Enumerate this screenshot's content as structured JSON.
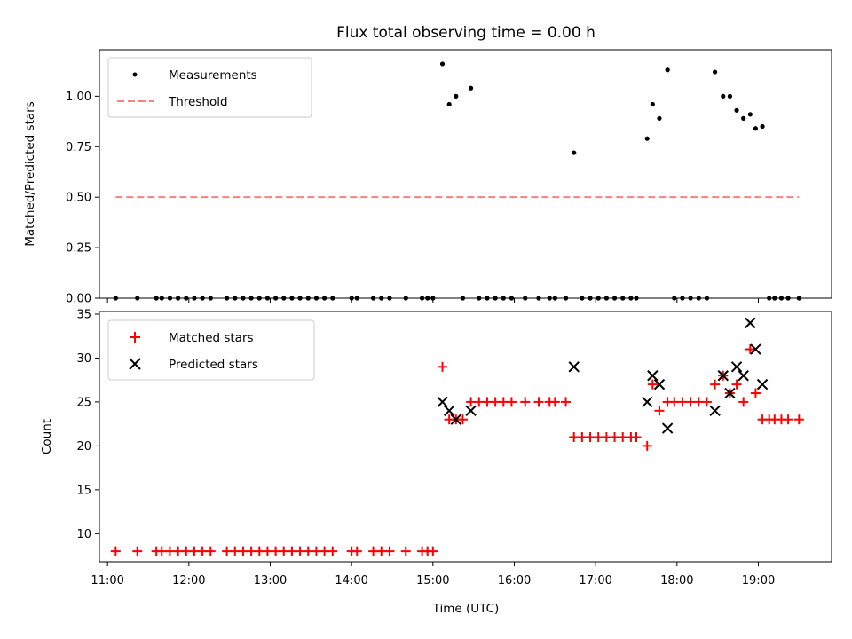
{
  "chart_data": [
    {
      "type": "scatter",
      "title": "Flux total observing time = 0.00 h",
      "xlabel": "",
      "ylabel": "Matched/Predicted stars",
      "xlim": [
        "10:54",
        "19:54"
      ],
      "ylim": [
        0,
        1.23
      ],
      "yticks": [
        "0.00",
        "0.25",
        "0.50",
        "0.75",
        "1.00"
      ],
      "grid": false,
      "legend_position": "top-left",
      "series": [
        {
          "name": "Measurements",
          "marker": "dot",
          "color": "#000000",
          "points": [
            [
              "11:06",
              0
            ],
            [
              "11:22",
              0
            ],
            [
              "11:36",
              0
            ],
            [
              "11:40",
              0
            ],
            [
              "11:46",
              0
            ],
            [
              "11:52",
              0
            ],
            [
              "11:58",
              0
            ],
            [
              "12:04",
              0
            ],
            [
              "12:10",
              0
            ],
            [
              "12:16",
              0
            ],
            [
              "12:28",
              0
            ],
            [
              "12:34",
              0
            ],
            [
              "12:40",
              0
            ],
            [
              "12:46",
              0
            ],
            [
              "12:52",
              0
            ],
            [
              "12:58",
              0
            ],
            [
              "13:04",
              0
            ],
            [
              "13:10",
              0
            ],
            [
              "13:16",
              0
            ],
            [
              "13:22",
              0
            ],
            [
              "13:28",
              0
            ],
            [
              "13:34",
              0
            ],
            [
              "13:40",
              0
            ],
            [
              "13:46",
              0
            ],
            [
              "14:00",
              0
            ],
            [
              "14:04",
              0
            ],
            [
              "14:16",
              0
            ],
            [
              "14:22",
              0
            ],
            [
              "14:28",
              0
            ],
            [
              "14:40",
              0
            ],
            [
              "14:52",
              0
            ],
            [
              "14:56",
              0
            ],
            [
              "15:00",
              0
            ],
            [
              "15:07",
              1.16
            ],
            [
              "15:12",
              0.96
            ],
            [
              "15:17",
              1.0
            ],
            [
              "15:22",
              0
            ],
            [
              "15:28",
              1.04
            ],
            [
              "15:34",
              0
            ],
            [
              "15:40",
              0
            ],
            [
              "15:46",
              0
            ],
            [
              "15:52",
              0
            ],
            [
              "15:58",
              0
            ],
            [
              "16:08",
              0
            ],
            [
              "16:18",
              0
            ],
            [
              "16:26",
              0
            ],
            [
              "16:30",
              0
            ],
            [
              "16:38",
              0
            ],
            [
              "16:44",
              0.72
            ],
            [
              "16:50",
              0
            ],
            [
              "16:56",
              0
            ],
            [
              "17:02",
              0
            ],
            [
              "17:08",
              0
            ],
            [
              "17:14",
              0
            ],
            [
              "17:20",
              0
            ],
            [
              "17:26",
              0
            ],
            [
              "17:30",
              0
            ],
            [
              "17:38",
              0.79
            ],
            [
              "17:42",
              0.96
            ],
            [
              "17:47",
              0.89
            ],
            [
              "17:53",
              1.13
            ],
            [
              "17:58",
              0
            ],
            [
              "18:04",
              0
            ],
            [
              "18:10",
              0
            ],
            [
              "18:16",
              0
            ],
            [
              "18:22",
              0
            ],
            [
              "18:28",
              1.12
            ],
            [
              "18:34",
              1.0
            ],
            [
              "18:39",
              1.0
            ],
            [
              "18:44",
              0.93
            ],
            [
              "18:49",
              0.89
            ],
            [
              "18:54",
              0.91
            ],
            [
              "18:58",
              0.84
            ],
            [
              "19:03",
              0.85
            ],
            [
              "19:08",
              0
            ],
            [
              "19:12",
              0
            ],
            [
              "19:17",
              0
            ],
            [
              "19:22",
              0
            ],
            [
              "19:30",
              0
            ]
          ]
        },
        {
          "name": "Threshold",
          "marker": "dashed-line",
          "color": "#ff7f7f",
          "points": [
            [
              "11:06",
              0.5
            ],
            [
              "19:30",
              0.5
            ]
          ]
        }
      ]
    },
    {
      "type": "scatter",
      "title": "",
      "xlabel": "Time (UTC)",
      "ylabel": "Count",
      "xlim": [
        "10:54",
        "19:54"
      ],
      "ylim": [
        6.8,
        35.3
      ],
      "xticks": [
        "11:00",
        "12:00",
        "13:00",
        "14:00",
        "15:00",
        "16:00",
        "17:00",
        "18:00",
        "19:00"
      ],
      "yticks": [
        "10",
        "15",
        "20",
        "25",
        "30",
        "35"
      ],
      "grid": false,
      "legend_position": "top-left",
      "series": [
        {
          "name": "Matched stars",
          "marker": "plus",
          "color": "#ff0000",
          "points": [
            [
              "11:06",
              8
            ],
            [
              "11:22",
              8
            ],
            [
              "11:36",
              8
            ],
            [
              "11:40",
              8
            ],
            [
              "11:46",
              8
            ],
            [
              "11:52",
              8
            ],
            [
              "11:58",
              8
            ],
            [
              "12:04",
              8
            ],
            [
              "12:10",
              8
            ],
            [
              "12:16",
              8
            ],
            [
              "12:28",
              8
            ],
            [
              "12:34",
              8
            ],
            [
              "12:40",
              8
            ],
            [
              "12:46",
              8
            ],
            [
              "12:52",
              8
            ],
            [
              "12:58",
              8
            ],
            [
              "13:04",
              8
            ],
            [
              "13:10",
              8
            ],
            [
              "13:16",
              8
            ],
            [
              "13:22",
              8
            ],
            [
              "13:28",
              8
            ],
            [
              "13:34",
              8
            ],
            [
              "13:40",
              8
            ],
            [
              "13:46",
              8
            ],
            [
              "14:00",
              8
            ],
            [
              "14:04",
              8
            ],
            [
              "14:16",
              8
            ],
            [
              "14:22",
              8
            ],
            [
              "14:28",
              8
            ],
            [
              "14:40",
              8
            ],
            [
              "14:52",
              8
            ],
            [
              "14:56",
              8
            ],
            [
              "15:00",
              8
            ],
            [
              "15:07",
              29
            ],
            [
              "15:12",
              23
            ],
            [
              "15:17",
              23
            ],
            [
              "15:22",
              23
            ],
            [
              "15:28",
              25
            ],
            [
              "15:34",
              25
            ],
            [
              "15:40",
              25
            ],
            [
              "15:46",
              25
            ],
            [
              "15:52",
              25
            ],
            [
              "15:58",
              25
            ],
            [
              "16:08",
              25
            ],
            [
              "16:18",
              25
            ],
            [
              "16:26",
              25
            ],
            [
              "16:30",
              25
            ],
            [
              "16:38",
              25
            ],
            [
              "16:44",
              21
            ],
            [
              "16:50",
              21
            ],
            [
              "16:56",
              21
            ],
            [
              "17:02",
              21
            ],
            [
              "17:08",
              21
            ],
            [
              "17:14",
              21
            ],
            [
              "17:20",
              21
            ],
            [
              "17:26",
              21
            ],
            [
              "17:30",
              21
            ],
            [
              "17:38",
              20
            ],
            [
              "17:42",
              27
            ],
            [
              "17:47",
              24
            ],
            [
              "17:53",
              25
            ],
            [
              "17:58",
              25
            ],
            [
              "18:04",
              25
            ],
            [
              "18:10",
              25
            ],
            [
              "18:16",
              25
            ],
            [
              "18:22",
              25
            ],
            [
              "18:28",
              27
            ],
            [
              "18:34",
              28
            ],
            [
              "18:39",
              26
            ],
            [
              "18:44",
              27
            ],
            [
              "18:49",
              25
            ],
            [
              "18:54",
              31
            ],
            [
              "18:58",
              26
            ],
            [
              "19:03",
              23
            ],
            [
              "19:08",
              23
            ],
            [
              "19:12",
              23
            ],
            [
              "19:17",
              23
            ],
            [
              "19:22",
              23
            ],
            [
              "19:30",
              23
            ]
          ]
        },
        {
          "name": "Predicted stars",
          "marker": "x",
          "color": "#000000",
          "points": [
            [
              "15:07",
              25
            ],
            [
              "15:12",
              24
            ],
            [
              "15:17",
              23
            ],
            [
              "15:28",
              24
            ],
            [
              "16:44",
              29
            ],
            [
              "17:38",
              25
            ],
            [
              "17:42",
              28
            ],
            [
              "17:47",
              27
            ],
            [
              "17:53",
              22
            ],
            [
              "18:28",
              24
            ],
            [
              "18:34",
              28
            ],
            [
              "18:39",
              26
            ],
            [
              "18:44",
              29
            ],
            [
              "18:49",
              28
            ],
            [
              "18:54",
              34
            ],
            [
              "18:58",
              31
            ],
            [
              "19:03",
              27
            ]
          ]
        }
      ]
    }
  ]
}
